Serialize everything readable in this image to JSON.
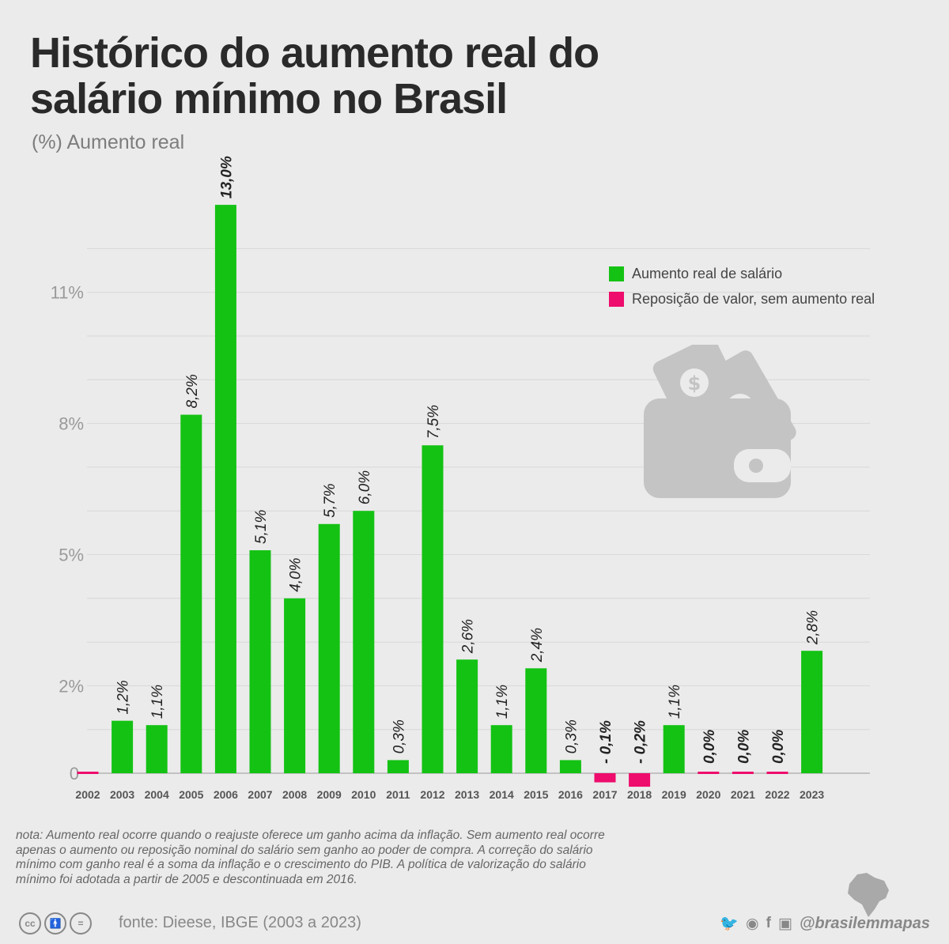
{
  "header": {
    "title": "Histórico do aumento real do salário mínimo no Brasil",
    "subtitle": "(%) Aumento real"
  },
  "legend": {
    "items": [
      {
        "label": "Aumento real de salário",
        "color": "#14c214"
      },
      {
        "label": "Reposição de valor, sem aumento real",
        "color": "#ee0c6c"
      }
    ]
  },
  "chart_data": {
    "type": "bar",
    "title": "Histórico do aumento real do salário mínimo no Brasil",
    "ylabel": "(%) Aumento real",
    "xlabel": "",
    "ylim": [
      0,
      13
    ],
    "grid": true,
    "legend_position": "top-right",
    "yticks": [
      {
        "value": 0,
        "label": "0"
      },
      {
        "value": 2,
        "label": "2%"
      },
      {
        "value": 5,
        "label": "5%"
      },
      {
        "value": 8,
        "label": "8%"
      },
      {
        "value": 11,
        "label": "11%"
      }
    ],
    "categories": [
      "2002",
      "2003",
      "2004",
      "2005",
      "2006",
      "2007",
      "2008",
      "2009",
      "2010",
      "2011",
      "2012",
      "2013",
      "2014",
      "2015",
      "2016",
      "2017",
      "2018",
      "2019",
      "2020",
      "2021",
      "2022",
      "2023"
    ],
    "values": [
      0.0,
      1.2,
      1.1,
      8.2,
      13.0,
      5.1,
      4.0,
      5.7,
      6.0,
      0.3,
      7.5,
      2.6,
      1.1,
      2.4,
      0.3,
      -0.1,
      -0.2,
      1.1,
      0.0,
      0.0,
      0.0,
      2.8
    ],
    "value_labels": [
      "",
      "1,2%",
      "1,1%",
      "8,2%",
      "13,0%",
      "5,1%",
      "4,0%",
      "5,7%",
      "6,0%",
      "0,3%",
      "7,5%",
      "2,6%",
      "1,1%",
      "2,4%",
      "0,3%",
      "- 0,1%",
      "- 0,2%",
      "1,1%",
      "0,0%",
      "0,0%",
      "0,0%",
      "2,8%"
    ],
    "bold_labels": [
      false,
      false,
      false,
      false,
      true,
      false,
      false,
      false,
      false,
      false,
      false,
      false,
      false,
      false,
      false,
      true,
      true,
      false,
      true,
      true,
      true,
      false
    ],
    "series_kind": [
      "repo",
      "gain",
      "gain",
      "gain",
      "gain",
      "gain",
      "gain",
      "gain",
      "gain",
      "gain",
      "gain",
      "gain",
      "gain",
      "gain",
      "gain",
      "repo",
      "repo",
      "gain",
      "repo",
      "repo",
      "repo",
      "gain"
    ],
    "colors": {
      "gain": "#14c214",
      "repo": "#ee0c6c"
    }
  },
  "note": "nota: Aumento real ocorre quando o reajuste oferece um ganho acima da inflação. Sem aumento real ocorre apenas o aumento ou reposição nominal do salário sem ganho ao poder de compra. A correção do salário mínimo com ganho real é a soma da inflação e o crescimento do PIB. A política de valorização do salário mínimo foi adotada a partir de 2005 e descontinuada em 2016.",
  "footer": {
    "source": "fonte: Dieese, IBGE (2003 a 2023)",
    "handle": "@brasilemmapas",
    "license_icons": [
      "cc-icon",
      "by-icon",
      "nd-icon"
    ],
    "social_icons": [
      "twitter-icon",
      "reddit-icon",
      "facebook-icon",
      "instagram-icon"
    ]
  }
}
